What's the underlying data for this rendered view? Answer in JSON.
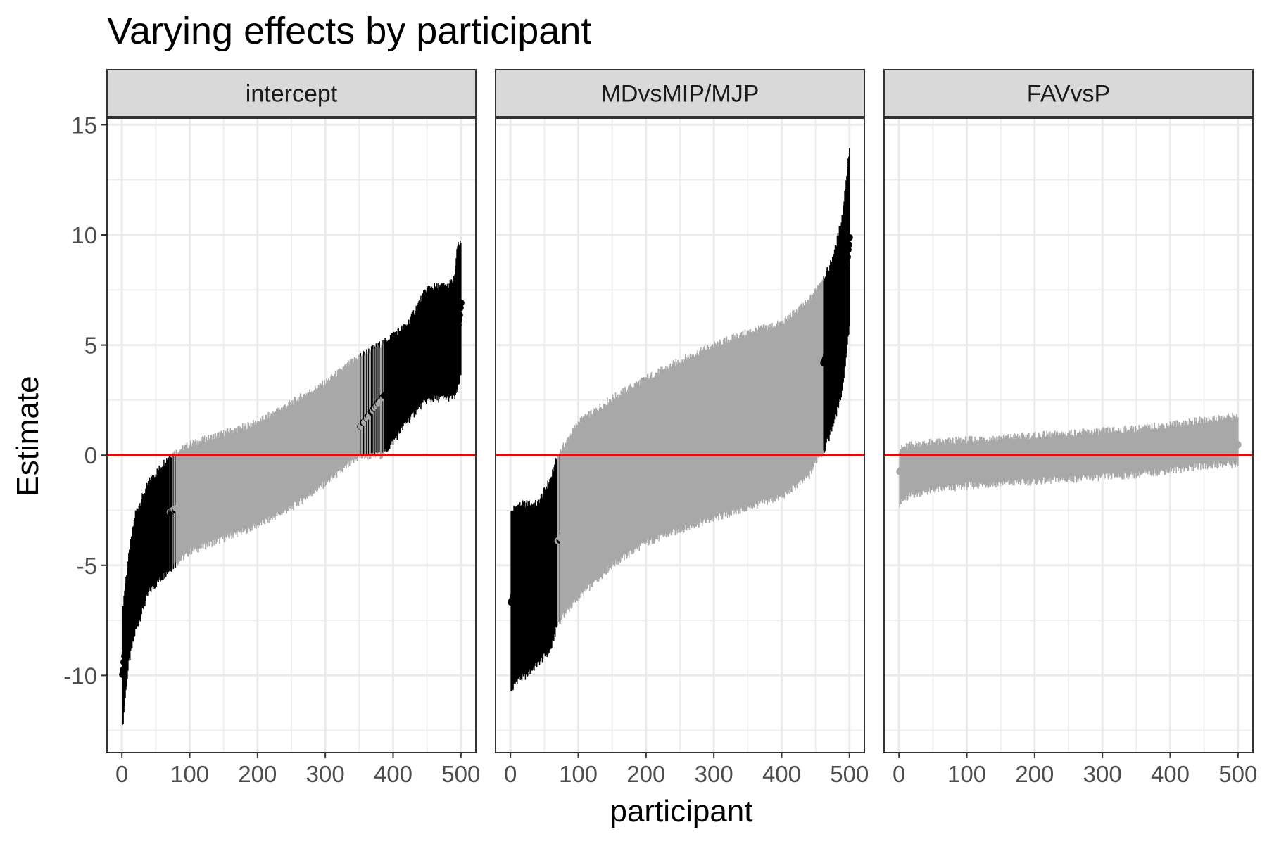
{
  "chart_data": {
    "type": "errorbar",
    "title": "Varying effects by participant",
    "xlabel": "participant",
    "ylabel": "Estimate",
    "xlim": [
      -22,
      522
    ],
    "ylim": [
      -13.5,
      15.3
    ],
    "x_ticks": [
      0,
      100,
      200,
      300,
      400,
      500
    ],
    "y_ticks": [
      -10,
      -5,
      0,
      5,
      10,
      15
    ],
    "y_tick_labels": [
      "-10",
      "-5",
      "0",
      "5",
      "10",
      "15"
    ],
    "reference_line": {
      "y": 0,
      "color": "#ff0000"
    },
    "grid": true,
    "interval_colors": {
      "excludes_zero": "#000000",
      "includes_zero": "#a8a8a8"
    },
    "panels": [
      {
        "name": "intercept",
        "n_participants": 500,
        "estimate": {
          "x": [
            1,
            5,
            10,
            20,
            40,
            70,
            100,
            150,
            200,
            250,
            300,
            350,
            385,
            400,
            420,
            450,
            480,
            490,
            495,
            500
          ],
          "y": [
            -10.0,
            -8.8,
            -7.2,
            -5.6,
            -3.8,
            -2.6,
            -2.1,
            -1.5,
            -1.0,
            -0.4,
            0.2,
            1.2,
            2.6,
            3.0,
            3.8,
            4.9,
            5.2,
            5.4,
            5.6,
            6.9
          ]
        },
        "upper": {
          "x": [
            1,
            5,
            10,
            20,
            40,
            70,
            100,
            150,
            200,
            250,
            300,
            350,
            385,
            400,
            420,
            450,
            480,
            490,
            495,
            500
          ],
          "y": [
            -7.0,
            -5.8,
            -4.6,
            -2.6,
            -1.2,
            0.0,
            0.5,
            1.0,
            1.5,
            2.4,
            3.3,
            4.5,
            5.1,
            5.5,
            5.9,
            7.6,
            7.7,
            8.0,
            9.5,
            9.6
          ]
        },
        "lower": {
          "x": [
            1,
            5,
            10,
            20,
            40,
            70,
            100,
            150,
            200,
            250,
            300,
            350,
            385,
            400,
            420,
            450,
            480,
            490,
            495,
            500
          ],
          "y": [
            -12.4,
            -11.0,
            -9.5,
            -8.0,
            -6.2,
            -5.2,
            -4.4,
            -3.8,
            -3.2,
            -2.4,
            -1.3,
            -0.1,
            0.0,
            0.6,
            1.5,
            2.5,
            2.6,
            2.6,
            2.9,
            3.6
          ]
        }
      },
      {
        "name": "MDvsMIP/MJP",
        "n_participants": 500,
        "estimate": {
          "x": [
            1,
            5,
            10,
            20,
            40,
            60,
            70,
            100,
            150,
            200,
            250,
            300,
            350,
            400,
            440,
            455,
            460,
            470,
            480,
            490,
            500
          ],
          "y": [
            -6.7,
            -6.4,
            -6.1,
            -5.9,
            -5.3,
            -4.6,
            -3.9,
            -3.0,
            -1.8,
            -0.5,
            0.3,
            0.8,
            1.3,
            2.1,
            3.0,
            3.8,
            4.0,
            4.9,
            5.6,
            6.9,
            9.9
          ]
        },
        "upper": {
          "x": [
            1,
            5,
            10,
            20,
            40,
            60,
            70,
            100,
            150,
            200,
            250,
            300,
            350,
            400,
            440,
            455,
            460,
            470,
            480,
            490,
            500
          ],
          "y": [
            -2.6,
            -2.4,
            -2.3,
            -2.2,
            -2.2,
            -1.0,
            0.0,
            1.5,
            2.6,
            3.5,
            4.3,
            5.0,
            5.6,
            6.0,
            7.0,
            7.8,
            8.0,
            8.5,
            9.5,
            11.0,
            14.0
          ]
        },
        "lower": {
          "x": [
            1,
            5,
            10,
            20,
            40,
            60,
            70,
            100,
            150,
            200,
            250,
            300,
            350,
            400,
            440,
            455,
            460,
            470,
            480,
            490,
            500
          ],
          "y": [
            -10.8,
            -10.5,
            -10.2,
            -10.1,
            -9.5,
            -8.8,
            -7.6,
            -6.5,
            -5.0,
            -4.0,
            -3.4,
            -2.9,
            -2.4,
            -1.9,
            -1.0,
            0.0,
            0.0,
            0.8,
            1.8,
            3.0,
            5.9
          ]
        }
      },
      {
        "name": "FAVvsP",
        "n_participants": 500,
        "estimate": {
          "x": [
            1,
            20,
            50,
            100,
            150,
            200,
            250,
            300,
            350,
            400,
            450,
            500
          ],
          "y": [
            -0.7,
            -0.6,
            -0.5,
            -0.4,
            -0.3,
            -0.2,
            -0.1,
            0.0,
            0.1,
            0.2,
            0.3,
            0.5
          ]
        },
        "upper": {
          "x": [
            1,
            20,
            50,
            100,
            150,
            200,
            250,
            300,
            350,
            400,
            450,
            500
          ],
          "y": [
            0.3,
            0.5,
            0.6,
            0.7,
            0.8,
            0.9,
            1.0,
            1.1,
            1.2,
            1.4,
            1.6,
            1.8
          ]
        },
        "lower": {
          "x": [
            1,
            20,
            50,
            100,
            150,
            200,
            250,
            300,
            350,
            400,
            450,
            500
          ],
          "y": [
            -2.2,
            -1.8,
            -1.6,
            -1.4,
            -1.3,
            -1.2,
            -1.1,
            -1.0,
            -0.9,
            -0.7,
            -0.5,
            -0.4
          ]
        }
      }
    ]
  }
}
